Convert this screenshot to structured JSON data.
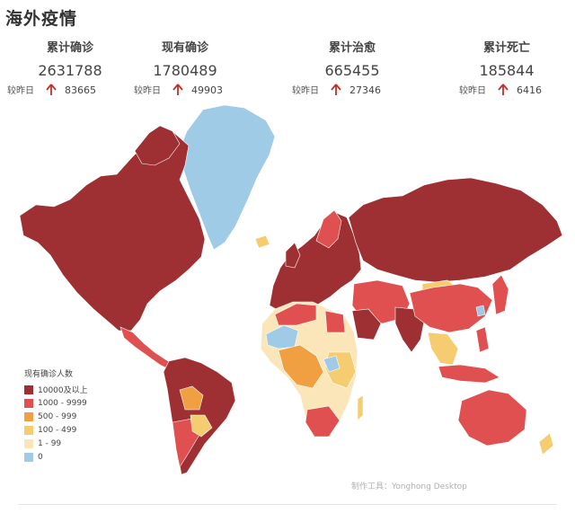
{
  "title": "海外疫情",
  "stats": [
    {
      "label": "累计确诊",
      "value": "2631788",
      "delta_label": "较昨日",
      "delta": "83665"
    },
    {
      "label": "现有确诊",
      "value": "1780489",
      "delta_label": "较昨日",
      "delta": "49903"
    },
    {
      "label": "累计治愈",
      "value": "665455",
      "delta_label": "较昨日",
      "delta": "27346"
    },
    {
      "label": "累计死亡",
      "value": "185844",
      "delta_label": "较昨日",
      "delta": "6416"
    }
  ],
  "legend": {
    "title": "现有确诊人数",
    "items": [
      {
        "label": "10000及以上",
        "color": "#9e3034"
      },
      {
        "label": "1000 - 9999",
        "color": "#e05050"
      },
      {
        "label": "500 - 999",
        "color": "#f0a040"
      },
      {
        "label": "100 - 499",
        "color": "#f5cc70"
      },
      {
        "label": "1 - 99",
        "color": "#fae6b8"
      },
      {
        "label": "0",
        "color": "#9fcbe6"
      }
    ]
  },
  "credit": "制作工具：Yonghong Desktop",
  "colors": {
    "dark": "#9e3034",
    "red": "#e05050",
    "orange": "#f0a040",
    "yellow": "#f5cc70",
    "pale": "#fae6b8",
    "blue": "#9fcbe6",
    "arrow": "#c0302a"
  }
}
